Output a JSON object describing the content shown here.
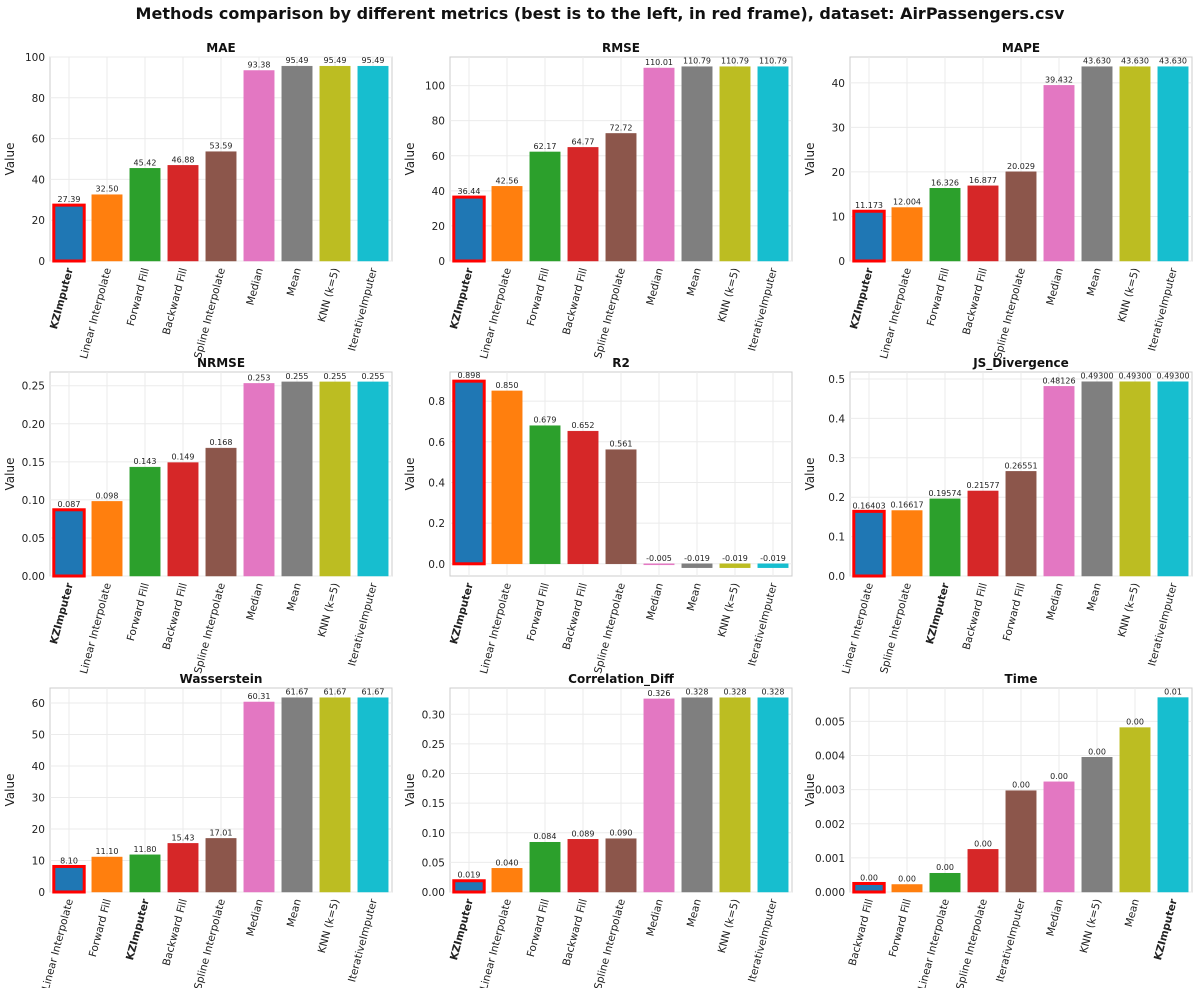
{
  "title": "Methods comparison by different metrics (best is to the left, in red frame),  dataset: AirPassengers.csv",
  "colors": [
    "#1f77b4",
    "#ff7f0e",
    "#2ca02c",
    "#d62728",
    "#8c564b",
    "#e377c2",
    "#7f7f7f",
    "#bcbd22",
    "#17becf"
  ],
  "highlight_color": "#ff0000",
  "bold_method": "KZImputer",
  "chart_data": [
    {
      "type": "bar",
      "title": "MAE",
      "ylabel": "Value",
      "ylim": [
        0,
        100
      ],
      "yticks": [
        0,
        20,
        40,
        60,
        80,
        100
      ],
      "tick_labels": [
        "0",
        "20",
        "40",
        "60",
        "80",
        "100"
      ],
      "grid": true,
      "categories": [
        "KZImputer",
        "Linear Interpolate",
        "Forward Fill",
        "Backward Fill",
        "Spline Interpolate",
        "Median",
        "Mean",
        "KNN (k=5)",
        "IterativeImputer"
      ],
      "values": [
        27.39,
        32.5,
        45.42,
        46.88,
        53.59,
        93.38,
        95.49,
        95.49,
        95.49
      ],
      "labels": [
        "27.39",
        "32.50",
        "45.42",
        "46.88",
        "53.59",
        "93.38",
        "95.49",
        "95.49",
        "95.49"
      ]
    },
    {
      "type": "bar",
      "title": "RMSE",
      "ylabel": "Value",
      "ylim": [
        0,
        116.3
      ],
      "yticks": [
        0,
        20,
        40,
        60,
        80,
        100
      ],
      "tick_labels": [
        "0",
        "20",
        "40",
        "60",
        "80",
        "100"
      ],
      "grid": true,
      "categories": [
        "KZImputer",
        "Linear Interpolate",
        "Forward Fill",
        "Backward Fill",
        "Spline Interpolate",
        "Median",
        "Mean",
        "KNN (k=5)",
        "IterativeImputer"
      ],
      "values": [
        36.44,
        42.56,
        62.17,
        64.77,
        72.72,
        110.01,
        110.79,
        110.79,
        110.79
      ],
      "labels": [
        "36.44",
        "42.56",
        "62.17",
        "64.77",
        "72.72",
        "110.01",
        "110.79",
        "110.79",
        "110.79"
      ]
    },
    {
      "type": "bar",
      "title": "MAPE",
      "ylabel": "Value",
      "ylim": [
        0,
        45.8
      ],
      "yticks": [
        0,
        10,
        20,
        30,
        40
      ],
      "tick_labels": [
        "0",
        "10",
        "20",
        "30",
        "40"
      ],
      "grid": true,
      "categories": [
        "KZImputer",
        "Linear Interpolate",
        "Forward Fill",
        "Backward Fill",
        "Spline Interpolate",
        "Median",
        "Mean",
        "KNN (k=5)",
        "IterativeImputer"
      ],
      "values": [
        11.173,
        12.004,
        16.326,
        16.877,
        20.029,
        39.432,
        43.63,
        43.63,
        43.63
      ],
      "labels": [
        "11.173",
        "12.004",
        "16.326",
        "16.877",
        "20.029",
        "39.432",
        "43.630",
        "43.630",
        "43.630"
      ]
    },
    {
      "type": "bar",
      "title": "NRMSE",
      "ylabel": "Value",
      "ylim": [
        0,
        0.268
      ],
      "yticks": [
        0,
        0.05,
        0.1,
        0.15,
        0.2,
        0.25
      ],
      "tick_labels": [
        "0.00",
        "0.05",
        "0.10",
        "0.15",
        "0.20",
        "0.25"
      ],
      "grid": true,
      "categories": [
        "KZImputer",
        "Linear Interpolate",
        "Forward Fill",
        "Backward Fill",
        "Spline Interpolate",
        "Median",
        "Mean",
        "KNN (k=5)",
        "IterativeImputer"
      ],
      "values": [
        0.087,
        0.098,
        0.143,
        0.149,
        0.168,
        0.253,
        0.255,
        0.255,
        0.255
      ],
      "labels": [
        "0.087",
        "0.098",
        "0.143",
        "0.149",
        "0.168",
        "0.253",
        "0.255",
        "0.255",
        "0.255"
      ]
    },
    {
      "type": "bar",
      "title": "R2",
      "ylabel": "Value",
      "ylim": [
        -0.06,
        0.943
      ],
      "yticks": [
        0,
        0.2,
        0.4,
        0.6,
        0.8
      ],
      "tick_labels": [
        "0.0",
        "0.2",
        "0.4",
        "0.6",
        "0.8"
      ],
      "grid": true,
      "categories": [
        "KZImputer",
        "Linear Interpolate",
        "Forward Fill",
        "Backward Fill",
        "Spline Interpolate",
        "Median",
        "Mean",
        "KNN (k=5)",
        "IterativeImputer"
      ],
      "values": [
        0.898,
        0.85,
        0.679,
        0.652,
        0.561,
        -0.005,
        -0.019,
        -0.019,
        -0.019
      ],
      "labels": [
        "0.898",
        "0.850",
        "0.679",
        "0.652",
        "0.561",
        "-0.005",
        "-0.019",
        "-0.019",
        "-0.019"
      ]
    },
    {
      "type": "bar",
      "title": "JS_Divergence",
      "ylabel": "Value",
      "ylim": [
        0,
        0.5177
      ],
      "yticks": [
        0,
        0.1,
        0.2,
        0.3,
        0.4,
        0.5
      ],
      "tick_labels": [
        "0.0",
        "0.1",
        "0.2",
        "0.3",
        "0.4",
        "0.5"
      ],
      "grid": true,
      "categories": [
        "Linear Interpolate",
        "Spline Interpolate",
        "KZImputer",
        "Backward Fill",
        "Forward Fill",
        "Median",
        "Mean",
        "KNN (k=5)",
        "IterativeImputer"
      ],
      "values": [
        0.16403,
        0.16617,
        0.19574,
        0.21577,
        0.26551,
        0.48126,
        0.493,
        0.493,
        0.493
      ],
      "labels": [
        "0.16403",
        "0.16617",
        "0.19574",
        "0.21577",
        "0.26551",
        "0.48126",
        "0.49300",
        "0.49300",
        "0.49300"
      ]
    },
    {
      "type": "bar",
      "title": "Wasserstein",
      "ylabel": "Value",
      "ylim": [
        0,
        64.75
      ],
      "yticks": [
        0,
        10,
        20,
        30,
        40,
        50,
        60
      ],
      "tick_labels": [
        "0",
        "10",
        "20",
        "30",
        "40",
        "50",
        "60"
      ],
      "grid": true,
      "categories": [
        "Linear Interpolate",
        "Forward Fill",
        "KZImputer",
        "Backward Fill",
        "Spline Interpolate",
        "Median",
        "Mean",
        "KNN (k=5)",
        "IterativeImputer"
      ],
      "values": [
        8.1,
        11.1,
        11.8,
        15.43,
        17.01,
        60.31,
        61.67,
        61.67,
        61.67
      ],
      "labels": [
        "8.10",
        "11.10",
        "11.80",
        "15.43",
        "17.01",
        "60.31",
        "61.67",
        "61.67",
        "61.67"
      ]
    },
    {
      "type": "bar",
      "title": "Correlation_Diff",
      "ylabel": "Value",
      "ylim": [
        0,
        0.3444
      ],
      "yticks": [
        0,
        0.05,
        0.1,
        0.15,
        0.2,
        0.25,
        0.3
      ],
      "tick_labels": [
        "0.00",
        "0.05",
        "0.10",
        "0.15",
        "0.20",
        "0.25",
        "0.30"
      ],
      "grid": true,
      "categories": [
        "KZImputer",
        "Linear Interpolate",
        "Forward Fill",
        "Backward Fill",
        "Spline Interpolate",
        "Median",
        "Mean",
        "KNN (k=5)",
        "IterativeImputer"
      ],
      "values": [
        0.019,
        0.04,
        0.084,
        0.089,
        0.09,
        0.326,
        0.328,
        0.328,
        0.328
      ],
      "labels": [
        "0.019",
        "0.040",
        "0.084",
        "0.089",
        "0.090",
        "0.326",
        "0.328",
        "0.328",
        "0.328"
      ]
    },
    {
      "type": "bar",
      "title": "Time",
      "ylabel": "Value",
      "ylim": [
        0,
        0.00598
      ],
      "yticks": [
        0,
        0.001,
        0.002,
        0.003,
        0.004,
        0.005
      ],
      "tick_labels": [
        "0.000",
        "0.001",
        "0.002",
        "0.003",
        "0.004",
        "0.005"
      ],
      "grid": true,
      "categories": [
        "Backward Fill",
        "Forward Fill",
        "Linear Interpolate",
        "Spline Interpolate",
        "IterativeImputer",
        "Median",
        "KNN (k=5)",
        "Mean",
        "KZImputer"
      ],
      "values": [
        0.00025,
        0.00022,
        0.00055,
        0.00125,
        0.00297,
        0.00323,
        0.00395,
        0.00482,
        0.0057
      ],
      "labels": [
        "0.00",
        "0.00",
        "0.00",
        "0.00",
        "0.00",
        "0.00",
        "0.00",
        "0.00",
        "0.01"
      ]
    }
  ]
}
